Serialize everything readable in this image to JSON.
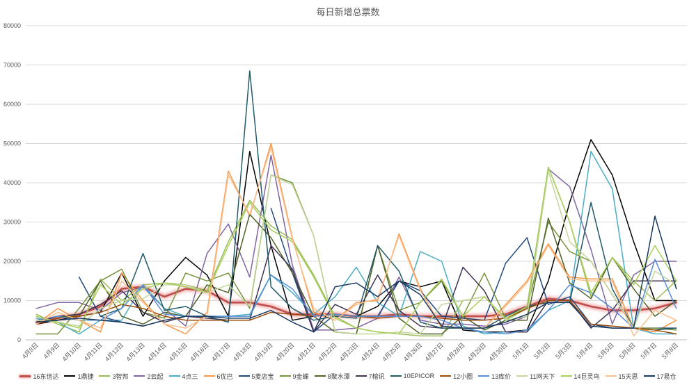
{
  "chart_data": {
    "type": "line",
    "title": "每日新增总票数",
    "xlabel": "",
    "ylabel": "",
    "ylim": [
      0,
      80000
    ],
    "yticks": [
      0,
      10000,
      20000,
      30000,
      40000,
      50000,
      60000,
      70000,
      80000
    ],
    "grid": "horizontal",
    "legend": "bottom",
    "categories": [
      "4月8日",
      "4月9日",
      "4月10日",
      "4月11日",
      "4月12日",
      "4月13日",
      "4月14日",
      "4月15日",
      "4月16日",
      "4月17日",
      "4月18日",
      "4月19日",
      "4月20日",
      "4月21日",
      "4月22日",
      "4月23日",
      "4月24日",
      "4月25日",
      "4月26日",
      "4月27日",
      "4月28日",
      "4月29日",
      "4月30日",
      "5月1日",
      "5月2日",
      "5月3日",
      "5月4日",
      "5月5日",
      "5月6日",
      "5月7日",
      "5月8日"
    ],
    "series": [
      {
        "name": "16东信达",
        "color": "#c0504d",
        "values": [
          4500,
          5500,
          6500,
          8500,
          13000,
          13500,
          11000,
          13000,
          12500,
          9500,
          9500,
          8500,
          6500,
          6500,
          6500,
          6000,
          6000,
          6500,
          6000,
          6000,
          6000,
          6000,
          6500,
          8500,
          10500,
          10000,
          8500,
          7500,
          7500,
          8000,
          9500
        ]
      },
      {
        "name": "1鼎捷",
        "color": "#000000",
        "values": [
          4000,
          5000,
          6000,
          7000,
          17000,
          6000,
          15000,
          21000,
          16500,
          6000,
          48000,
          24000,
          5000,
          6000,
          6500,
          6000,
          8500,
          15000,
          13500,
          15000,
          2500,
          2000,
          2000,
          2500,
          15000,
          35000,
          51000,
          42000,
          25000,
          10000,
          10000
        ]
      },
      {
        "name": "3智邦",
        "color": "#9bbb59",
        "values": [
          6500,
          4000,
          2000,
          15500,
          10000,
          14000,
          14500,
          14000,
          12500,
          25000,
          35500,
          29000,
          25500,
          16500,
          6000,
          3000,
          2000,
          1500,
          1000,
          1000,
          10000,
          11000,
          5000,
          8000,
          44000,
          30000,
          11000,
          21000,
          15000,
          10000,
          15000
        ]
      },
      {
        "name": "2云起",
        "color": "#8064a2",
        "values": [
          8000,
          9500,
          9500,
          7500,
          12000,
          13500,
          8000,
          3500,
          22000,
          29500,
          16000,
          47000,
          19000,
          2500,
          2500,
          3000,
          5500,
          16000,
          5000,
          4000,
          4000,
          3500,
          4000,
          6000,
          43500,
          39000,
          23000,
          4000,
          16500,
          20000,
          20000
        ]
      },
      {
        "name": "4点三",
        "color": "#4bacc6",
        "values": [
          5500,
          4500,
          1500,
          5000,
          5000,
          14000,
          8000,
          6000,
          6000,
          6000,
          6500,
          16500,
          12000,
          6500,
          11000,
          18500,
          9500,
          6000,
          22500,
          20000,
          3500,
          1500,
          2000,
          2000,
          7500,
          10000,
          48000,
          38500,
          3000,
          1500,
          1500
        ]
      },
      {
        "name": "6优巴",
        "color": "#f79646",
        "values": [
          4000,
          8000,
          5000,
          2000,
          17000,
          10000,
          4000,
          1500,
          7000,
          43000,
          31500,
          50000,
          26000,
          7000,
          5000,
          9500,
          10000,
          27000,
          13000,
          3000,
          3000,
          3000,
          9000,
          15000,
          24500,
          16000,
          15500,
          15500,
          3000,
          2000,
          5000
        ]
      },
      {
        "name": "5麦店宝",
        "color": "#1f497d",
        "values": [
          null,
          null,
          16000,
          6000,
          4500,
          3500,
          5000,
          null,
          null,
          null,
          null,
          33500,
          17000,
          2000,
          6500,
          6000,
          6000,
          15000,
          12500,
          6000,
          5500,
          5000,
          19500,
          26000,
          9000,
          11000,
          4000,
          3000,
          3000,
          3000,
          3000
        ]
      },
      {
        "name": "9金蝶",
        "color": "#77933c",
        "values": [
          1500,
          1500,
          8000,
          15000,
          18000,
          7000,
          5500,
          17000,
          15000,
          17000,
          8000,
          42000,
          40000,
          26500,
          2000,
          1500,
          24000,
          7500,
          9500,
          15000,
          6000,
          17000,
          5500,
          8000,
          30000,
          22500,
          20000,
          11500,
          3000,
          3000,
          2500
        ]
      },
      {
        "name": "8聚水潭",
        "color": "#4f6228",
        "values": [
          5000,
          6000,
          6000,
          15000,
          6000,
          4000,
          7000,
          6000,
          14000,
          12000,
          32000,
          26000,
          17000,
          6000,
          2000,
          1500,
          24000,
          5500,
          1500,
          1500,
          6000,
          2500,
          5000,
          5000,
          31000,
          14500,
          10500,
          21000,
          13000,
          6000,
          10000
        ]
      },
      {
        "name": "7榕讯",
        "color": "#403152",
        "values": [
          4500,
          6000,
          6500,
          9000,
          12500,
          7000,
          4500,
          6000,
          5500,
          5000,
          5000,
          24000,
          18000,
          2000,
          9000,
          6500,
          16500,
          7500,
          3500,
          3000,
          18500,
          12500,
          2000,
          2000,
          10000,
          10000,
          3000,
          7500,
          15000,
          15000,
          15000
        ]
      },
      {
        "name": "10EPICOR",
        "color": "#215968",
        "values": [
          null,
          null,
          null,
          6000,
          8000,
          22000,
          7500,
          8500,
          6000,
          4500,
          68500,
          13500,
          8000,
          5000,
          6000,
          5500,
          24000,
          17500,
          4500,
          3000,
          3000,
          3000,
          6000,
          8500,
          9500,
          9500,
          35000,
          13000,
          3000,
          2500,
          3000
        ]
      },
      {
        "name": "12小圈",
        "color": "#984807",
        "values": [
          4000,
          5500,
          6000,
          7000,
          9000,
          8000,
          6000,
          5000,
          5000,
          5000,
          5000,
          7000,
          6500,
          6000,
          6500,
          6000,
          5500,
          6000,
          6000,
          5500,
          5000,
          5000,
          5500,
          8000,
          10000,
          10000,
          4000,
          3500,
          3000,
          2500,
          1500
        ]
      },
      {
        "name": "13库价",
        "color": "#558ed5",
        "values": [
          5000,
          6000,
          5000,
          5000,
          8000,
          14000,
          6500,
          6000,
          6000,
          6000,
          6000,
          16500,
          13000,
          6000,
          6500,
          6000,
          6000,
          6000,
          6000,
          5000,
          3000,
          2000,
          1500,
          2500,
          7500,
          14000,
          12000,
          8000,
          3000,
          20500,
          8000
        ]
      },
      {
        "name": "11网天下",
        "color": "#c3d69b",
        "values": [
          5000,
          4500,
          3500,
          8000,
          10000,
          10500,
          14000,
          14000,
          12000,
          14000,
          8500,
          42000,
          39500,
          26500,
          2000,
          1500,
          1500,
          2000,
          1500,
          9000,
          10000,
          11000,
          5000,
          6000,
          43000,
          25000,
          20000,
          11500,
          3000,
          17500,
          14000
        ]
      },
      {
        "name": "14巨灵鸟",
        "color": "#a9cf5b",
        "values": [
          6000,
          4500,
          3000,
          14000,
          9000,
          13000,
          14500,
          13500,
          12000,
          24000,
          35000,
          28000,
          25000,
          16000,
          5500,
          3000,
          2000,
          1500,
          9500,
          15500,
          6000,
          11000,
          5500,
          8500,
          44000,
          30000,
          12000,
          21000,
          14000,
          24000,
          15000
        ]
      },
      {
        "name": "15天思",
        "color": "#fac090",
        "values": [
          4000,
          7000,
          5000,
          3000,
          15000,
          9500,
          4000,
          3000,
          6000,
          42000,
          32000,
          49000,
          25500,
          8000,
          5000,
          9000,
          10500,
          26500,
          12500,
          3500,
          3000,
          3000,
          8500,
          14500,
          24000,
          15500,
          15000,
          15000,
          1000,
          7500,
          5000
        ]
      },
      {
        "name": "17易仓",
        "color": "#17375e",
        "values": [
          4500,
          5000,
          5500,
          5000,
          4500,
          3500,
          5000,
          6000,
          6000,
          5500,
          5500,
          7500,
          4500,
          2000,
          13500,
          14500,
          11000,
          15000,
          11500,
          3500,
          3000,
          3000,
          4500,
          6500,
          9500,
          9500,
          3500,
          3000,
          3000,
          31500,
          13000
        ]
      }
    ]
  }
}
